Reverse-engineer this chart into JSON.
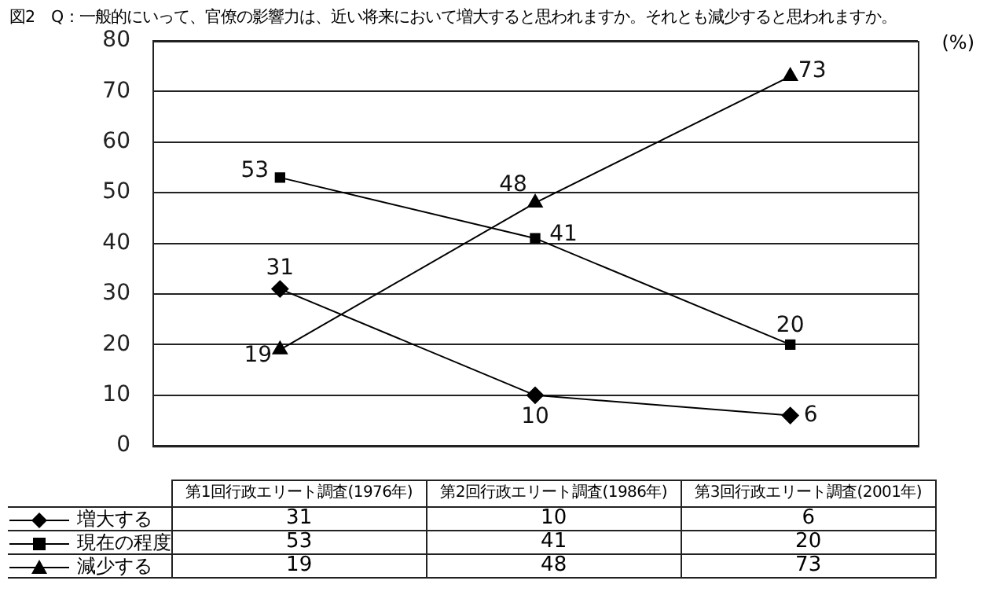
{
  "chart_data": {
    "type": "line",
    "title": "図2　Q：一般的にいって、官僚の影響力は、近い将来において増大すると思われますか。それとも減少すると思われますか。",
    "ylabel": "(%)",
    "categories": [
      "第1回行政エリート調査(1976年)",
      "第2回行政エリート調査(1986年)",
      "第3回行政エリート調査(2001年)"
    ],
    "series": [
      {
        "name": "増大する",
        "color": "#000000",
        "marker": "diamond",
        "values": [
          31,
          10,
          6
        ]
      },
      {
        "name": "現在の程度",
        "color": "#000000",
        "marker": "square",
        "values": [
          53,
          41,
          20
        ]
      },
      {
        "name": "減少する",
        "color": "#000000",
        "marker": "triangle",
        "values": [
          19,
          48,
          73
        ]
      }
    ],
    "annotations": [
      "31",
      "10",
      "6",
      "53",
      "41",
      "20",
      "19",
      "48",
      "73"
    ],
    "ylim": [
      0,
      80
    ],
    "yticks": [
      0,
      10,
      20,
      30,
      40,
      50,
      60,
      70,
      80
    ],
    "grid": "y",
    "legend": "bottom left",
    "data_labels": true,
    "line_style": "solid"
  }
}
